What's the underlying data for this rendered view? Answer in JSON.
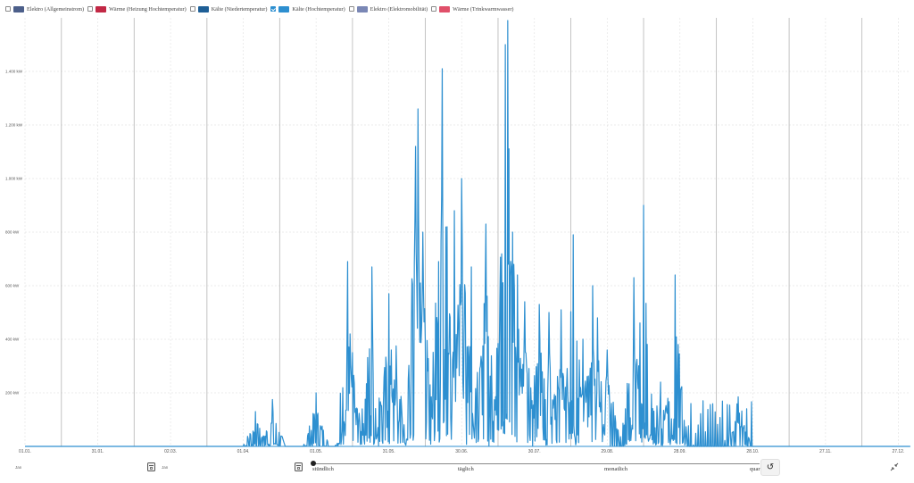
{
  "legend": [
    {
      "label": "Elektro (Allgemeinstrom)",
      "color": "#4c5f8a",
      "checked": false
    },
    {
      "label": "Wärme (Heizung Hochtemperatur)",
      "color": "#c22845",
      "checked": false
    },
    {
      "label": "Kälte (Niedertemperatur)",
      "color": "#1f5f96",
      "checked": false
    },
    {
      "label": "Kälte (Hochtemperatur)",
      "color": "#2d8fd0",
      "checked": true
    },
    {
      "label": "Elektro (Elektromobilität)",
      "color": "#7a87b5",
      "checked": false
    },
    {
      "label": "Wärme (Trinkwarmwasser)",
      "color": "#e0506a",
      "checked": false
    }
  ],
  "y_axis": {
    "unit": "kW",
    "ticks": [
      "200 kW",
      "400 kW",
      "600 kW",
      "800 kW",
      "1.000 kW",
      "1.200 kW",
      "1.400 kW"
    ]
  },
  "x_axis": {
    "ticks": [
      "01.01.",
      "31.01.",
      "02.03.",
      "01.04.",
      "01.05.",
      "31.05.",
      "30.06.",
      "30.07.",
      "29.08.",
      "28.09.",
      "28.10.",
      "27.11.",
      "27.12."
    ]
  },
  "chart_data": {
    "type": "line",
    "series": [
      {
        "name": "Kälte (Hochtemperatur)",
        "color": "#2d8fd0",
        "peaks": [
          {
            "day": 95,
            "value": 130
          },
          {
            "day": 102,
            "value": 175
          },
          {
            "day": 120,
            "value": 200
          },
          {
            "day": 133,
            "value": 690
          },
          {
            "day": 135,
            "value": 350
          },
          {
            "day": 143,
            "value": 670
          },
          {
            "day": 150,
            "value": 570
          },
          {
            "day": 153,
            "value": 375
          },
          {
            "day": 161,
            "value": 1120
          },
          {
            "day": 162,
            "value": 1260
          },
          {
            "day": 164,
            "value": 800
          },
          {
            "day": 172,
            "value": 1410
          },
          {
            "day": 174,
            "value": 820
          },
          {
            "day": 177,
            "value": 880
          },
          {
            "day": 180,
            "value": 1000
          },
          {
            "day": 184,
            "value": 670
          },
          {
            "day": 190,
            "value": 830
          },
          {
            "day": 198,
            "value": 1500
          },
          {
            "day": 199,
            "value": 1590
          },
          {
            "day": 203,
            "value": 640
          },
          {
            "day": 206,
            "value": 540
          },
          {
            "day": 212,
            "value": 530
          },
          {
            "day": 216,
            "value": 500
          },
          {
            "day": 221,
            "value": 510
          },
          {
            "day": 226,
            "value": 790
          },
          {
            "day": 230,
            "value": 400
          },
          {
            "day": 234,
            "value": 600
          },
          {
            "day": 236,
            "value": 480
          },
          {
            "day": 240,
            "value": 360
          },
          {
            "day": 251,
            "value": 630
          },
          {
            "day": 255,
            "value": 900
          },
          {
            "day": 262,
            "value": 240
          },
          {
            "day": 268,
            "value": 640
          },
          {
            "day": 294,
            "value": 185
          }
        ]
      }
    ],
    "ylim": [
      0,
      1600
    ],
    "grid": true
  },
  "controls": {
    "left_value": "Jan",
    "left_value2": "Jan",
    "steps": [
      "stündlich",
      "täglich",
      "monatlich",
      "quar"
    ],
    "selected_step": "stündlich"
  },
  "icons": {
    "reset": "reset-icon",
    "expand": "collapse-icon"
  }
}
